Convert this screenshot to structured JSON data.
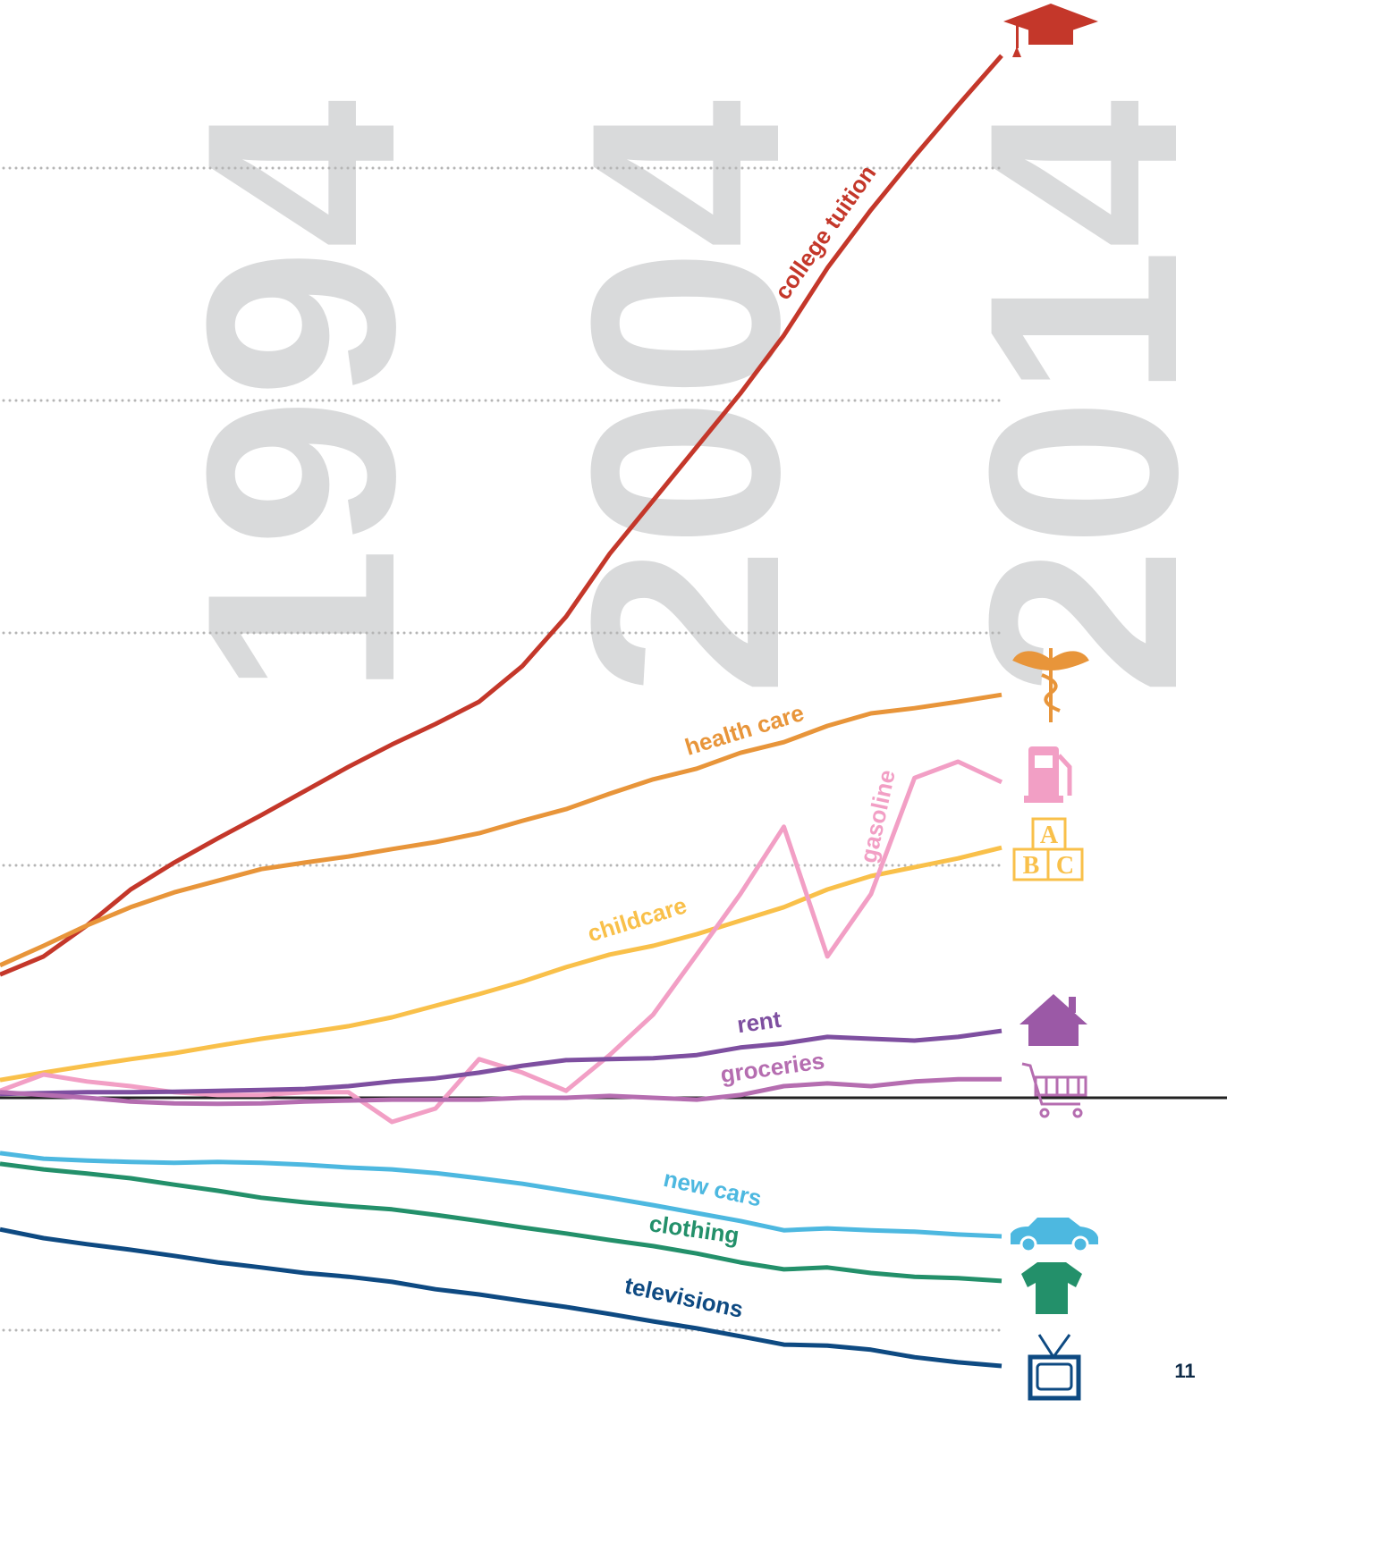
{
  "chart_data": {
    "type": "line",
    "x": [
      1991,
      1992,
      1993,
      1994,
      1995,
      1996,
      1997,
      1998,
      1999,
      2000,
      2001,
      2002,
      2003,
      2004,
      2005,
      2006,
      2007,
      2008,
      2009,
      2010,
      2011,
      2012,
      2013,
      2014
    ],
    "xlim": [
      1991,
      2014
    ],
    "ylim": [
      -100,
      230
    ],
    "yticks": [
      -50,
      0,
      50,
      100,
      150,
      200
    ],
    "grid": true,
    "annotations": [
      "1994",
      "2004",
      "2014"
    ],
    "icon_letters": [
      "A",
      "B",
      "C"
    ],
    "series": [
      {
        "name": "college tuition",
        "color": "#c4372a",
        "values": [
          26.5,
          30.4,
          37.1,
          44.8,
          50.6,
          55.8,
          60.8,
          66.0,
          71.2,
          76.0,
          80.4,
          85.2,
          92.9,
          103.5,
          117,
          128.5,
          140,
          151.5,
          164,
          178.5,
          191,
          202.5,
          213.5,
          224.2
        ]
      },
      {
        "name": "health care",
        "color": "#e8953a",
        "values": [
          28.5,
          32.7,
          37.1,
          41,
          44.2,
          46.7,
          49.2,
          50.6,
          51.9,
          53.5,
          55,
          56.9,
          59.6,
          62.1,
          65.4,
          68.5,
          70.8,
          74.2,
          76.5,
          80,
          82.7,
          83.8,
          85.2,
          86.7
        ]
      },
      {
        "name": "childcare",
        "color": "#f9c04a",
        "values": [
          3.8,
          5.4,
          6.9,
          8.3,
          9.6,
          11.2,
          12.7,
          14.0,
          15.4,
          17.3,
          19.8,
          22.3,
          25,
          28.1,
          30.8,
          32.7,
          35.2,
          38.1,
          41,
          44.8,
          47.7,
          49.6,
          51.5,
          53.8
        ]
      },
      {
        "name": "gasoline",
        "color": "#f29fc5",
        "values": [
          1.5,
          5.0,
          3.5,
          2.5,
          1.2,
          0.6,
          0.6,
          1.2,
          1.2,
          -5.2,
          -2.3,
          8.3,
          5.4,
          1.5,
          9.2,
          17.9,
          30.8,
          43.8,
          58.3,
          30.4,
          43.8,
          68.8,
          72.3,
          67.9
        ]
      },
      {
        "name": "rent",
        "color": "#7e4fa0",
        "values": [
          0.8,
          1,
          1.2,
          1.2,
          1.3,
          1.5,
          1.7,
          1.9,
          2.5,
          3.5,
          4.2,
          5.4,
          6.9,
          8.1,
          8.3,
          8.5,
          9.2,
          10.8,
          11.7,
          13.1,
          12.7,
          12.3,
          13.1,
          14.4
        ]
      },
      {
        "name": "groceries",
        "color": "#b56db0",
        "values": [
          1.2,
          0.6,
          0,
          -0.8,
          -1.2,
          -1.3,
          -1.2,
          -0.8,
          -0.6,
          -0.4,
          -0.4,
          -0.4,
          0,
          0,
          0.4,
          0,
          -0.4,
          0.6,
          2.5,
          3.1,
          2.5,
          3.5,
          4,
          4
        ]
      },
      {
        "name": "new cars",
        "color": "#4db8e0",
        "values": [
          -11.9,
          -13.1,
          -13.5,
          -13.8,
          -14,
          -13.8,
          -14,
          -14.4,
          -15,
          -15.4,
          -16.2,
          -17.3,
          -18.5,
          -20,
          -21.5,
          -23.1,
          -24.8,
          -26.5,
          -28.5,
          -28.1,
          -28.5,
          -28.8,
          -29.4,
          -29.8
        ]
      },
      {
        "name": "clothing",
        "color": "#23906a",
        "values": [
          -14.2,
          -15.4,
          -16.3,
          -17.3,
          -18.7,
          -20,
          -21.5,
          -22.5,
          -23.3,
          -24,
          -25.2,
          -26.5,
          -27.9,
          -29.2,
          -30.6,
          -31.9,
          -33.5,
          -35.4,
          -36.9,
          -36.5,
          -37.7,
          -38.5,
          -38.8,
          -39.4
        ]
      },
      {
        "name": "televisions",
        "color": "#0e4a82",
        "values": [
          -28.3,
          -30.2,
          -31.5,
          -32.7,
          -34,
          -35.4,
          -36.5,
          -37.7,
          -38.5,
          -39.6,
          -41.2,
          -42.3,
          -43.7,
          -45,
          -46.5,
          -48.1,
          -49.6,
          -51.3,
          -53.1,
          -53.3,
          -54.2,
          -55.8,
          -56.9,
          -57.7
        ]
      }
    ]
  },
  "page_number": "11"
}
